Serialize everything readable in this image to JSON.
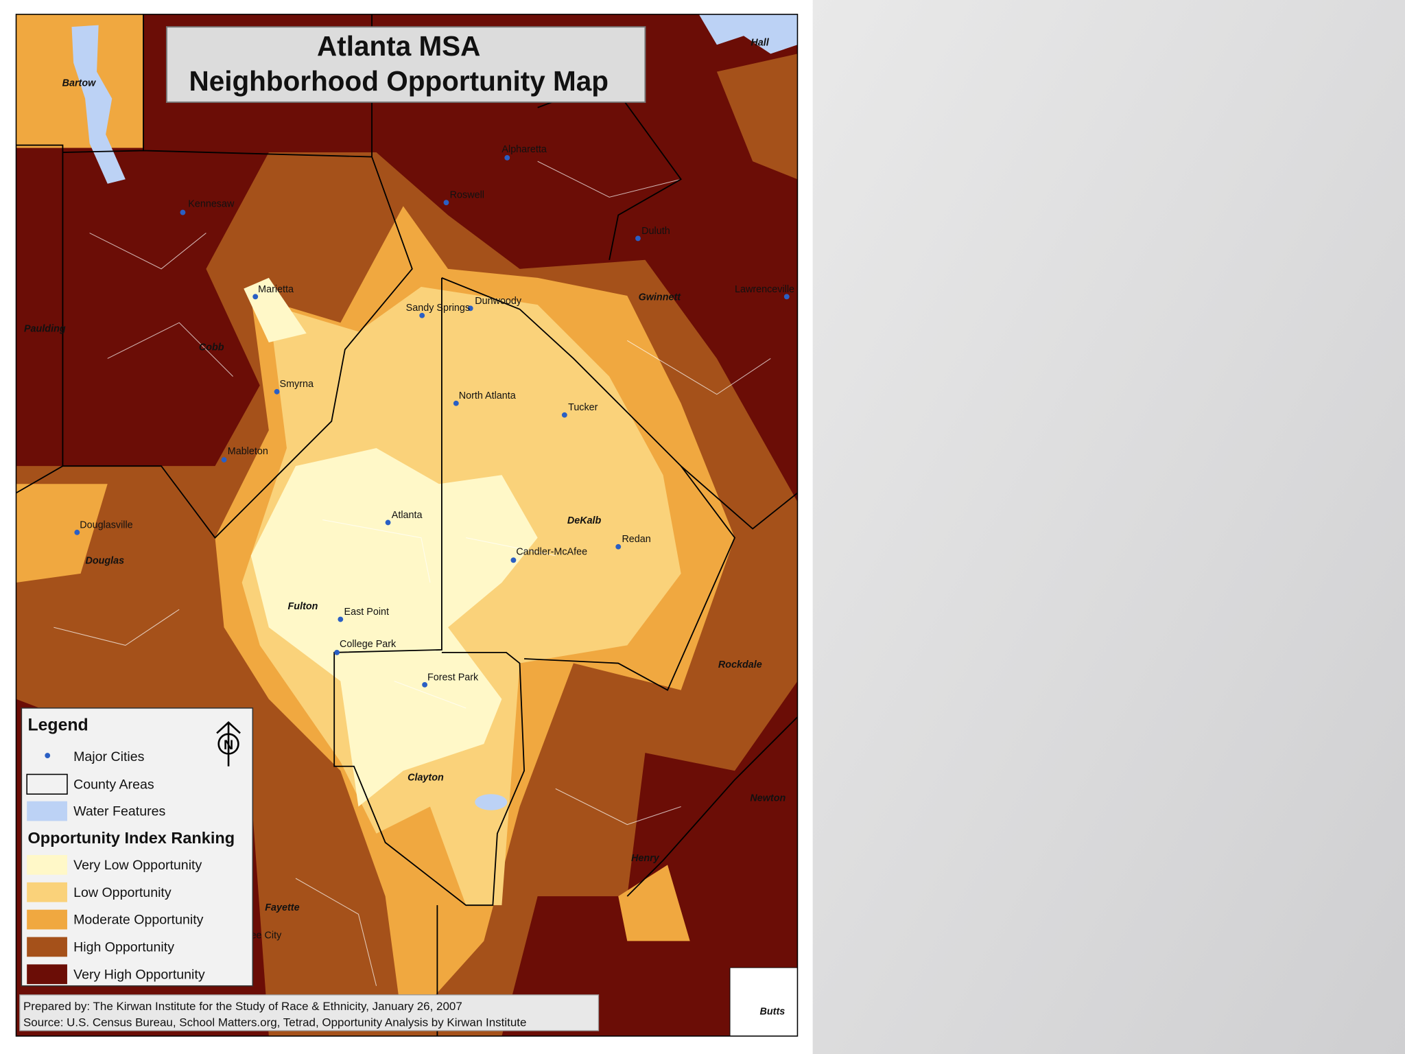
{
  "map": {
    "title_line1": "Atlanta MSA",
    "title_line2": "Neighborhood Opportunity Map",
    "counties": [
      "Bartow",
      "Hall",
      "Cobb",
      "Paulding",
      "Gwinnett",
      "Douglas",
      "Fulton",
      "DeKalb",
      "Rockdale",
      "Clayton",
      "Newton",
      "Henry",
      "Fayette",
      "Butts"
    ],
    "cities": [
      "Kennesaw",
      "Marietta",
      "Smyrna",
      "Mableton",
      "Douglasville",
      "Roswell",
      "Alpharetta",
      "Duluth",
      "Lawrenceville",
      "Sandy Springs",
      "Dunwoody",
      "North Atlanta",
      "Tucker",
      "Atlanta",
      "Candler-McAfee",
      "Redan",
      "East Point",
      "College Park",
      "Forest Park",
      "Peachtree City"
    ],
    "legend": {
      "title": "Legend",
      "major_cities": "Major Cities",
      "county_areas": "County Areas",
      "water_features": "Water Features",
      "ranking_title": "Opportunity Index Ranking",
      "rankings": [
        {
          "name": "Very Low Opportunity",
          "color": "#fff8c8"
        },
        {
          "name": "Low Opportunity",
          "color": "#fad27a"
        },
        {
          "name": "Moderate Opportunity",
          "color": "#f0a840"
        },
        {
          "name": "High Opportunity",
          "color": "#a5511a"
        },
        {
          "name": "Very High Opportunity",
          "color": "#6b0d06"
        }
      ]
    },
    "credits": {
      "prepared_by": "Prepared by: The Kirwan Institute for the Study of Race & Ethnicity, January 26, 2007",
      "source": "Source: U.S. Census Bureau, School Matters.org, Tetrad, Opportunity Analysis by Kirwan Institute"
    }
  }
}
